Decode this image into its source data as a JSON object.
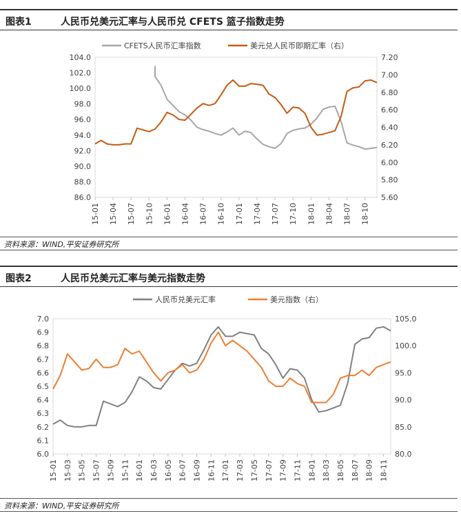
{
  "charts": [
    {
      "number": "图表1",
      "title": "人民币兑美元汇率与人民币兑 CFETS 篮子指数走势",
      "source": "资料来源：WIND,平安证券研究所"
    },
    {
      "number": "图表2",
      "title": "人民币兑美元汇率与美元指数走势",
      "source": "资料来源：WIND,平安证券研究所"
    }
  ],
  "chart_data": [
    {
      "type": "line",
      "title": "人民币兑美元汇率与人民币兑 CFETS 篮子指数走势",
      "x_ticks": [
        "15-01",
        "15-04",
        "15-07",
        "15-10",
        "16-01",
        "16-04",
        "16-07",
        "16-10",
        "17-01",
        "17-04",
        "17-07",
        "17-10",
        "18-01",
        "18-04",
        "18-07",
        "18-10"
      ],
      "x_range": [
        "15-01",
        "18-12"
      ],
      "y_left": {
        "min": 86.0,
        "max": 104.0,
        "step": 2,
        "decimals": 1,
        "ticks": [
          "86.0",
          "88.0",
          "90.0",
          "92.0",
          "94.0",
          "96.0",
          "98.0",
          "100.0",
          "102.0",
          "104.0"
        ]
      },
      "y_right": {
        "min": 5.6,
        "max": 7.2,
        "step": 0.2,
        "decimals": 2,
        "ticks": [
          "5.60",
          "5.80",
          "6.00",
          "6.20",
          "6.40",
          "6.60",
          "6.80",
          "7.00",
          "7.20"
        ]
      },
      "legend_position": "top",
      "series": [
        {
          "name": "CFETS人民币汇率指数",
          "axis": "left",
          "color": "#a6a6a6",
          "points": [
            [
              "15-11",
              102.9
            ],
            [
              "15-11",
              101.5
            ],
            [
              "15-12",
              100.4
            ],
            [
              "16-01",
              98.6
            ],
            [
              "16-02",
              97.8
            ],
            [
              "16-03",
              97.0
            ],
            [
              "16-04",
              96.6
            ],
            [
              "16-05",
              95.9
            ],
            [
              "16-06",
              95.0
            ],
            [
              "16-07",
              94.7
            ],
            [
              "16-08",
              94.5
            ],
            [
              "16-09",
              94.2
            ],
            [
              "16-10",
              94.0
            ],
            [
              "16-11",
              94.4
            ],
            [
              "16-12",
              94.9
            ],
            [
              "17-01",
              94.0
            ],
            [
              "17-02",
              94.5
            ],
            [
              "17-03",
              94.3
            ],
            [
              "17-04",
              93.5
            ],
            [
              "17-05",
              92.8
            ],
            [
              "17-06",
              92.5
            ],
            [
              "17-07",
              92.3
            ],
            [
              "17-08",
              92.9
            ],
            [
              "17-09",
              94.2
            ],
            [
              "17-10",
              94.6
            ],
            [
              "17-11",
              94.8
            ],
            [
              "17-12",
              94.9
            ],
            [
              "18-01",
              95.4
            ],
            [
              "18-02",
              96.2
            ],
            [
              "18-03",
              97.3
            ],
            [
              "18-04",
              97.6
            ],
            [
              "18-05",
              97.7
            ],
            [
              "18-06",
              95.8
            ],
            [
              "18-07",
              93.0
            ],
            [
              "18-08",
              92.7
            ],
            [
              "18-09",
              92.5
            ],
            [
              "18-10",
              92.2
            ],
            [
              "18-11",
              92.3
            ],
            [
              "18-12",
              92.4
            ]
          ]
        },
        {
          "name": "美元兑人民币即期汇率（右）",
          "axis": "right",
          "color": "#c55a11",
          "points": [
            [
              "15-01",
              6.21
            ],
            [
              "15-02",
              6.25
            ],
            [
              "15-03",
              6.21
            ],
            [
              "15-04",
              6.2
            ],
            [
              "15-05",
              6.2
            ],
            [
              "15-06",
              6.21
            ],
            [
              "15-07",
              6.21
            ],
            [
              "15-08",
              6.39
            ],
            [
              "15-09",
              6.37
            ],
            [
              "15-10",
              6.35
            ],
            [
              "15-11",
              6.38
            ],
            [
              "15-12",
              6.46
            ],
            [
              "16-01",
              6.57
            ],
            [
              "16-02",
              6.54
            ],
            [
              "16-03",
              6.49
            ],
            [
              "16-04",
              6.48
            ],
            [
              "16-05",
              6.55
            ],
            [
              "16-06",
              6.62
            ],
            [
              "16-07",
              6.67
            ],
            [
              "16-08",
              6.65
            ],
            [
              "16-09",
              6.67
            ],
            [
              "16-10",
              6.77
            ],
            [
              "16-11",
              6.88
            ],
            [
              "16-12",
              6.94
            ],
            [
              "17-01",
              6.87
            ],
            [
              "17-02",
              6.87
            ],
            [
              "17-03",
              6.9
            ],
            [
              "17-04",
              6.89
            ],
            [
              "17-05",
              6.88
            ],
            [
              "17-06",
              6.78
            ],
            [
              "17-07",
              6.74
            ],
            [
              "17-08",
              6.66
            ],
            [
              "17-09",
              6.56
            ],
            [
              "17-10",
              6.63
            ],
            [
              "17-11",
              6.62
            ],
            [
              "17-12",
              6.56
            ],
            [
              "18-01",
              6.4
            ],
            [
              "18-02",
              6.31
            ],
            [
              "18-03",
              6.32
            ],
            [
              "18-04",
              6.34
            ],
            [
              "18-05",
              6.36
            ],
            [
              "18-06",
              6.52
            ],
            [
              "18-07",
              6.81
            ],
            [
              "18-08",
              6.85
            ],
            [
              "18-09",
              6.86
            ],
            [
              "18-10",
              6.93
            ],
            [
              "18-11",
              6.94
            ],
            [
              "18-12",
              6.91
            ]
          ]
        }
      ]
    },
    {
      "type": "line",
      "title": "人民币兑美元汇率与美元指数走势",
      "x_ticks": [
        "15-01",
        "15-03",
        "15-05",
        "15-07",
        "15-09",
        "15-11",
        "16-01",
        "16-03",
        "16-05",
        "16-07",
        "16-09",
        "16-11",
        "17-01",
        "17-03",
        "17-05",
        "17-07",
        "17-09",
        "17-11",
        "18-01",
        "18-03",
        "18-05",
        "18-07",
        "18-09",
        "18-11"
      ],
      "x_range": [
        "15-01",
        "18-12"
      ],
      "y_left": {
        "min": 6.0,
        "max": 7.0,
        "step": 0.1,
        "decimals": 1,
        "ticks": [
          "6.0",
          "6.1",
          "6.2",
          "6.3",
          "6.4",
          "6.5",
          "6.6",
          "6.7",
          "6.8",
          "6.9",
          "7.0"
        ]
      },
      "y_right": {
        "min": 80.0,
        "max": 105.0,
        "step": 5,
        "decimals": 1,
        "ticks": [
          "80.0",
          "85.0",
          "90.0",
          "95.0",
          "100.0",
          "105.0"
        ]
      },
      "legend_position": "top",
      "series": [
        {
          "name": "人民币兑美元汇率",
          "axis": "left",
          "color": "#7f7f7f",
          "points": [
            [
              "15-01",
              6.22
            ],
            [
              "15-02",
              6.25
            ],
            [
              "15-03",
              6.21
            ],
            [
              "15-04",
              6.2
            ],
            [
              "15-05",
              6.2
            ],
            [
              "15-06",
              6.21
            ],
            [
              "15-07",
              6.21
            ],
            [
              "15-08",
              6.39
            ],
            [
              "15-09",
              6.37
            ],
            [
              "15-10",
              6.35
            ],
            [
              "15-11",
              6.38
            ],
            [
              "15-12",
              6.46
            ],
            [
              "16-01",
              6.57
            ],
            [
              "16-02",
              6.54
            ],
            [
              "16-03",
              6.49
            ],
            [
              "16-04",
              6.48
            ],
            [
              "16-05",
              6.55
            ],
            [
              "16-06",
              6.62
            ],
            [
              "16-07",
              6.67
            ],
            [
              "16-08",
              6.65
            ],
            [
              "16-09",
              6.67
            ],
            [
              "16-10",
              6.77
            ],
            [
              "16-11",
              6.88
            ],
            [
              "16-12",
              6.94
            ],
            [
              "17-01",
              6.87
            ],
            [
              "17-02",
              6.87
            ],
            [
              "17-03",
              6.9
            ],
            [
              "17-04",
              6.89
            ],
            [
              "17-05",
              6.88
            ],
            [
              "17-06",
              6.78
            ],
            [
              "17-07",
              6.74
            ],
            [
              "17-08",
              6.66
            ],
            [
              "17-09",
              6.56
            ],
            [
              "17-10",
              6.63
            ],
            [
              "17-11",
              6.62
            ],
            [
              "17-12",
              6.56
            ],
            [
              "18-01",
              6.4
            ],
            [
              "18-02",
              6.31
            ],
            [
              "18-03",
              6.32
            ],
            [
              "18-04",
              6.34
            ],
            [
              "18-05",
              6.36
            ],
            [
              "18-06",
              6.52
            ],
            [
              "18-07",
              6.81
            ],
            [
              "18-08",
              6.85
            ],
            [
              "18-09",
              6.86
            ],
            [
              "18-10",
              6.93
            ],
            [
              "18-11",
              6.94
            ],
            [
              "18-12",
              6.91
            ]
          ]
        },
        {
          "name": "美元指数（右）",
          "axis": "right",
          "color": "#ed7d31",
          "points": [
            [
              "15-01",
              92.0
            ],
            [
              "15-02",
              94.5
            ],
            [
              "15-03",
              98.5
            ],
            [
              "15-04",
              97.0
            ],
            [
              "15-05",
              95.5
            ],
            [
              "15-06",
              95.8
            ],
            [
              "15-07",
              97.5
            ],
            [
              "15-08",
              96.0
            ],
            [
              "15-09",
              96.0
            ],
            [
              "15-10",
              96.5
            ],
            [
              "15-11",
              99.5
            ],
            [
              "15-12",
              98.5
            ],
            [
              "16-01",
              99.0
            ],
            [
              "16-02",
              97.0
            ],
            [
              "16-03",
              95.0
            ],
            [
              "16-04",
              93.5
            ],
            [
              "16-05",
              95.0
            ],
            [
              "16-06",
              95.5
            ],
            [
              "16-07",
              96.5
            ],
            [
              "16-08",
              95.0
            ],
            [
              "16-09",
              95.5
            ],
            [
              "16-10",
              97.5
            ],
            [
              "16-11",
              100.5
            ],
            [
              "16-12",
              102.5
            ],
            [
              "17-01",
              100.0
            ],
            [
              "17-02",
              101.0
            ],
            [
              "17-03",
              100.0
            ],
            [
              "17-04",
              99.0
            ],
            [
              "17-05",
              97.5
            ],
            [
              "17-06",
              96.0
            ],
            [
              "17-07",
              93.5
            ],
            [
              "17-08",
              92.5
            ],
            [
              "17-09",
              92.5
            ],
            [
              "17-10",
              94.0
            ],
            [
              "17-11",
              93.0
            ],
            [
              "17-12",
              92.5
            ],
            [
              "18-01",
              89.5
            ],
            [
              "18-02",
              89.5
            ],
            [
              "18-03",
              89.5
            ],
            [
              "18-04",
              91.0
            ],
            [
              "18-05",
              94.0
            ],
            [
              "18-06",
              94.5
            ],
            [
              "18-07",
              94.5
            ],
            [
              "18-08",
              95.5
            ],
            [
              "18-09",
              94.5
            ],
            [
              "18-10",
              96.0
            ],
            [
              "18-11",
              96.5
            ],
            [
              "18-12",
              97.0
            ]
          ]
        }
      ]
    }
  ]
}
